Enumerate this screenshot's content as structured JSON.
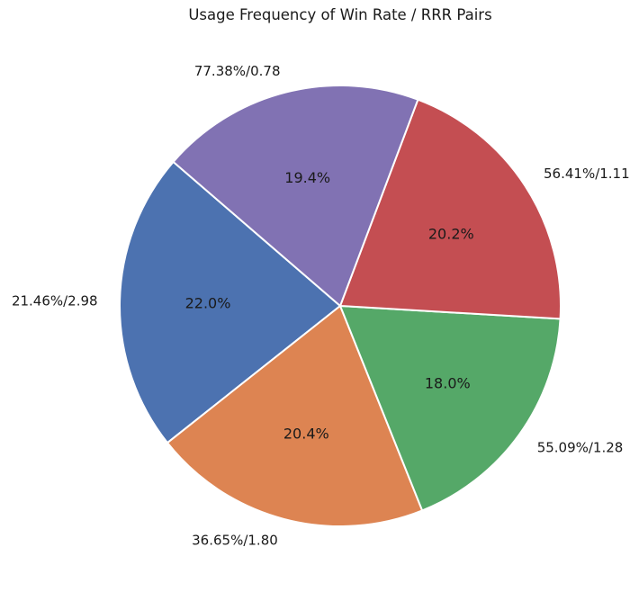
{
  "chart_data": {
    "type": "pie",
    "title": "Usage Frequency of Win Rate / RRR Pairs",
    "categories": [
      "21.46%/2.98",
      "36.65%/1.80",
      "55.09%/1.28",
      "56.41%/1.11",
      "77.38%/0.78"
    ],
    "values": [
      22.0,
      20.4,
      18.0,
      20.2,
      19.4
    ],
    "autopct_labels": [
      "22.0%",
      "20.4%",
      "18.0%",
      "20.2%",
      "19.4%"
    ],
    "colors": [
      "#4c72b0",
      "#dd8452",
      "#55a868",
      "#c44e52",
      "#8172b3"
    ],
    "start_angle_deg": 139.2,
    "direction": "counterclockwise",
    "label_distance": 1.1,
    "pct_distance": 0.6,
    "edge_color": "#ffffff",
    "text_color": "#1a1a1a",
    "background": "#ffffff",
    "legend": "none"
  }
}
